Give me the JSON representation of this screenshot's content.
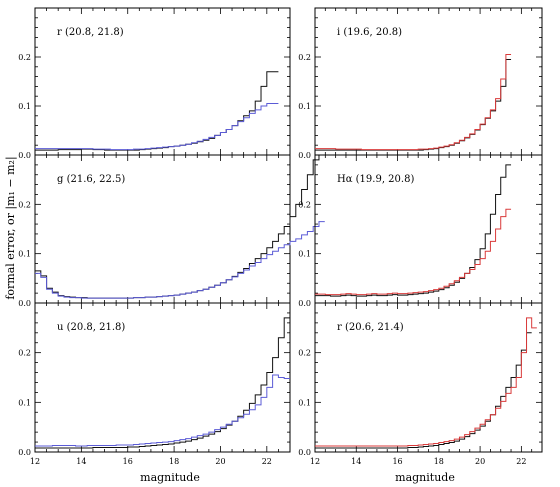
{
  "chart_data": {
    "type": "line",
    "ylabel": "formal error, or |m₁ − m₂|",
    "xlabel": "magnitude",
    "xlim": [
      12,
      23
    ],
    "ylim": [
      0,
      0.3
    ],
    "xticks": [
      "12",
      "14",
      "16",
      "18",
      "20",
      "22"
    ],
    "yticks": [
      "0.0",
      "0.1",
      "0.2"
    ],
    "grid": false,
    "bin_width": 0.25,
    "x_start": 12,
    "colors": {
      "black": "#111111",
      "blue": "#5b5bd6",
      "red": "#d93a3a"
    },
    "panels": [
      {
        "label": "r (20.8, 21.8)",
        "series": [
          {
            "color": "black",
            "values": [
              0.01,
              0.01,
              0.01,
              0.01,
              0.011,
              0.011,
              0.011,
              0.011,
              0.012,
              0.012,
              0.011,
              0.011,
              0.01,
              0.01,
              0.01,
              0.01,
              0.01,
              0.01,
              0.011,
              0.012,
              0.013,
              0.014,
              0.015,
              0.017,
              0.018,
              0.02,
              0.022,
              0.024,
              0.027,
              0.03,
              0.034,
              0.04,
              0.046,
              0.052,
              0.06,
              0.07,
              0.08,
              0.09,
              0.11,
              0.14,
              0.17,
              0.17
            ]
          },
          {
            "color": "blue",
            "values": [
              0.013,
              0.013,
              0.013,
              0.013,
              0.013,
              0.013,
              0.013,
              0.013,
              0.013,
              0.013,
              0.012,
              0.012,
              0.012,
              0.011,
              0.011,
              0.011,
              0.011,
              0.012,
              0.012,
              0.013,
              0.014,
              0.015,
              0.016,
              0.017,
              0.018,
              0.02,
              0.022,
              0.025,
              0.028,
              0.032,
              0.036,
              0.04,
              0.046,
              0.052,
              0.06,
              0.068,
              0.076,
              0.085,
              0.092,
              0.1,
              0.105,
              0.105
            ]
          }
        ]
      },
      {
        "label": "i (19.6, 20.8)",
        "series": [
          {
            "color": "black",
            "values": [
              0.01,
              0.01,
              0.01,
              0.01,
              0.01,
              0.01,
              0.01,
              0.01,
              0.01,
              0.01,
              0.01,
              0.01,
              0.01,
              0.01,
              0.01,
              0.01,
              0.01,
              0.01,
              0.01,
              0.01,
              0.01,
              0.011,
              0.012,
              0.013,
              0.015,
              0.017,
              0.02,
              0.024,
              0.029,
              0.035,
              0.042,
              0.051,
              0.062,
              0.075,
              0.09,
              0.11,
              0.14,
              0.195
            ]
          },
          {
            "color": "red",
            "values": [
              0.013,
              0.013,
              0.013,
              0.013,
              0.012,
              0.012,
              0.012,
              0.012,
              0.012,
              0.011,
              0.011,
              0.011,
              0.011,
              0.011,
              0.011,
              0.011,
              0.011,
              0.011,
              0.011,
              0.011,
              0.012,
              0.012,
              0.013,
              0.014,
              0.016,
              0.018,
              0.021,
              0.025,
              0.03,
              0.036,
              0.043,
              0.052,
              0.063,
              0.076,
              0.092,
              0.115,
              0.155,
              0.205
            ]
          }
        ]
      },
      {
        "label": "g (21.6, 22.5)",
        "series": [
          {
            "color": "black",
            "values": [
              0.065,
              0.055,
              0.03,
              0.022,
              0.015,
              0.013,
              0.012,
              0.011,
              0.011,
              0.01,
              0.01,
              0.01,
              0.01,
              0.01,
              0.01,
              0.01,
              0.01,
              0.011,
              0.011,
              0.012,
              0.012,
              0.013,
              0.014,
              0.015,
              0.016,
              0.018,
              0.02,
              0.022,
              0.025,
              0.028,
              0.032,
              0.036,
              0.041,
              0.047,
              0.054,
              0.062,
              0.07,
              0.08,
              0.09,
              0.1,
              0.112,
              0.125,
              0.14,
              0.155,
              0.175,
              0.2,
              0.23,
              0.26,
              0.29,
              0.3
            ]
          },
          {
            "color": "blue",
            "values": [
              0.06,
              0.052,
              0.028,
              0.02,
              0.014,
              0.012,
              0.011,
              0.011,
              0.01,
              0.01,
              0.01,
              0.01,
              0.01,
              0.01,
              0.01,
              0.01,
              0.01,
              0.011,
              0.011,
              0.012,
              0.012,
              0.013,
              0.014,
              0.015,
              0.016,
              0.018,
              0.02,
              0.022,
              0.025,
              0.028,
              0.032,
              0.036,
              0.041,
              0.047,
              0.053,
              0.06,
              0.067,
              0.075,
              0.082,
              0.09,
              0.098,
              0.105,
              0.112,
              0.118,
              0.125,
              0.13,
              0.138,
              0.145,
              0.155,
              0.165
            ]
          }
        ]
      },
      {
        "label": "Hα (19.9, 20.8)",
        "series": [
          {
            "color": "black",
            "values": [
              0.015,
              0.015,
              0.015,
              0.014,
              0.014,
              0.015,
              0.016,
              0.015,
              0.014,
              0.014,
              0.015,
              0.016,
              0.015,
              0.015,
              0.016,
              0.017,
              0.016,
              0.016,
              0.017,
              0.018,
              0.019,
              0.02,
              0.022,
              0.024,
              0.027,
              0.031,
              0.036,
              0.042,
              0.05,
              0.06,
              0.072,
              0.088,
              0.11,
              0.14,
              0.18,
              0.22,
              0.255,
              0.28
            ]
          },
          {
            "color": "red",
            "values": [
              0.018,
              0.018,
              0.017,
              0.017,
              0.017,
              0.018,
              0.019,
              0.018,
              0.017,
              0.017,
              0.018,
              0.019,
              0.018,
              0.018,
              0.019,
              0.02,
              0.019,
              0.019,
              0.02,
              0.021,
              0.022,
              0.023,
              0.025,
              0.027,
              0.03,
              0.034,
              0.039,
              0.045,
              0.052,
              0.06,
              0.068,
              0.078,
              0.09,
              0.105,
              0.125,
              0.15,
              0.175,
              0.19
            ]
          }
        ]
      },
      {
        "label": "u (20.8, 21.8)",
        "series": [
          {
            "color": "black",
            "values": [
              0.008,
              0.008,
              0.008,
              0.008,
              0.008,
              0.008,
              0.008,
              0.008,
              0.008,
              0.008,
              0.009,
              0.009,
              0.009,
              0.009,
              0.009,
              0.009,
              0.01,
              0.01,
              0.011,
              0.012,
              0.013,
              0.014,
              0.015,
              0.016,
              0.018,
              0.02,
              0.022,
              0.025,
              0.028,
              0.032,
              0.036,
              0.041,
              0.047,
              0.054,
              0.062,
              0.072,
              0.084,
              0.098,
              0.115,
              0.135,
              0.16,
              0.19,
              0.23,
              0.27
            ]
          },
          {
            "color": "blue",
            "values": [
              0.012,
              0.012,
              0.012,
              0.013,
              0.013,
              0.013,
              0.013,
              0.012,
              0.012,
              0.013,
              0.013,
              0.013,
              0.013,
              0.013,
              0.014,
              0.014,
              0.014,
              0.015,
              0.016,
              0.017,
              0.018,
              0.019,
              0.02,
              0.021,
              0.023,
              0.025,
              0.027,
              0.03,
              0.033,
              0.036,
              0.04,
              0.045,
              0.05,
              0.056,
              0.062,
              0.069,
              0.076,
              0.085,
              0.095,
              0.11,
              0.13,
              0.155,
              0.15,
              0.148
            ]
          }
        ]
      },
      {
        "label": "r (20.6, 21.4)",
        "series": [
          {
            "color": "black",
            "values": [
              0.008,
              0.008,
              0.008,
              0.008,
              0.008,
              0.008,
              0.008,
              0.008,
              0.008,
              0.008,
              0.008,
              0.008,
              0.008,
              0.008,
              0.008,
              0.008,
              0.008,
              0.008,
              0.009,
              0.009,
              0.01,
              0.011,
              0.012,
              0.013,
              0.015,
              0.017,
              0.019,
              0.022,
              0.026,
              0.031,
              0.037,
              0.044,
              0.052,
              0.062,
              0.075,
              0.092,
              0.112,
              0.13,
              0.15,
              0.175,
              0.205,
              0.24
            ]
          },
          {
            "color": "red",
            "values": [
              0.012,
              0.012,
              0.012,
              0.012,
              0.012,
              0.012,
              0.012,
              0.012,
              0.012,
              0.012,
              0.012,
              0.012,
              0.012,
              0.012,
              0.012,
              0.012,
              0.012,
              0.012,
              0.013,
              0.013,
              0.014,
              0.015,
              0.016,
              0.017,
              0.019,
              0.021,
              0.023,
              0.026,
              0.03,
              0.035,
              0.041,
              0.048,
              0.056,
              0.065,
              0.075,
              0.088,
              0.102,
              0.118,
              0.13,
              0.15,
              0.2,
              0.27,
              0.25
            ]
          }
        ]
      }
    ]
  }
}
